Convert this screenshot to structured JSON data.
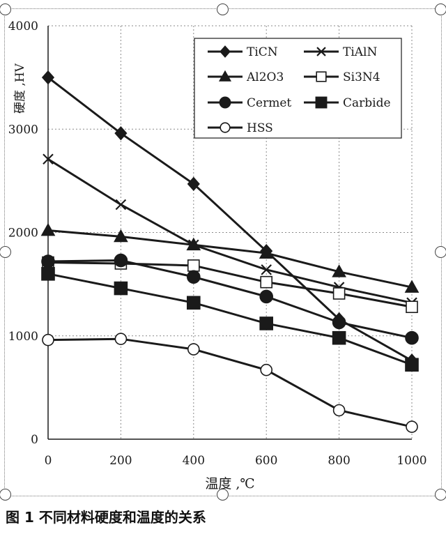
{
  "figure": {
    "caption": "图 1  不同材料硬度和温度的关系"
  },
  "chart_data": {
    "type": "line",
    "title": "",
    "xlabel": "温度 ,℃",
    "ylabel": "硬度 ,HV",
    "x": [
      0,
      200,
      400,
      600,
      800,
      1000
    ],
    "xlim": [
      0,
      1000
    ],
    "ylim": [
      0,
      4000
    ],
    "xticks": [
      0,
      200,
      400,
      600,
      800,
      1000
    ],
    "yticks": [
      0,
      1000,
      2000,
      3000,
      4000
    ],
    "grid": true,
    "legend_position": "top-right",
    "series": [
      {
        "name": "TiCN",
        "marker": "diamond",
        "values": [
          3500,
          2960,
          2470,
          1820,
          1160,
          760
        ]
      },
      {
        "name": "TiAlN",
        "marker": "x",
        "values": [
          2710,
          2270,
          1880,
          1640,
          1470,
          1320
        ]
      },
      {
        "name": "Al2O3",
        "marker": "triangle",
        "values": [
          2020,
          1960,
          1880,
          1800,
          1620,
          1470
        ]
      },
      {
        "name": "Si3N4",
        "marker": "open-square",
        "values": [
          1710,
          1700,
          1680,
          1520,
          1410,
          1280
        ]
      },
      {
        "name": "Cermet",
        "marker": "filled-circle",
        "values": [
          1720,
          1730,
          1570,
          1380,
          1130,
          980
        ]
      },
      {
        "name": "Carbide",
        "marker": "filled-square",
        "values": [
          1600,
          1460,
          1320,
          1120,
          980,
          720
        ]
      },
      {
        "name": "HSS",
        "marker": "open-circle",
        "values": [
          960,
          970,
          870,
          670,
          280,
          120
        ]
      }
    ]
  }
}
